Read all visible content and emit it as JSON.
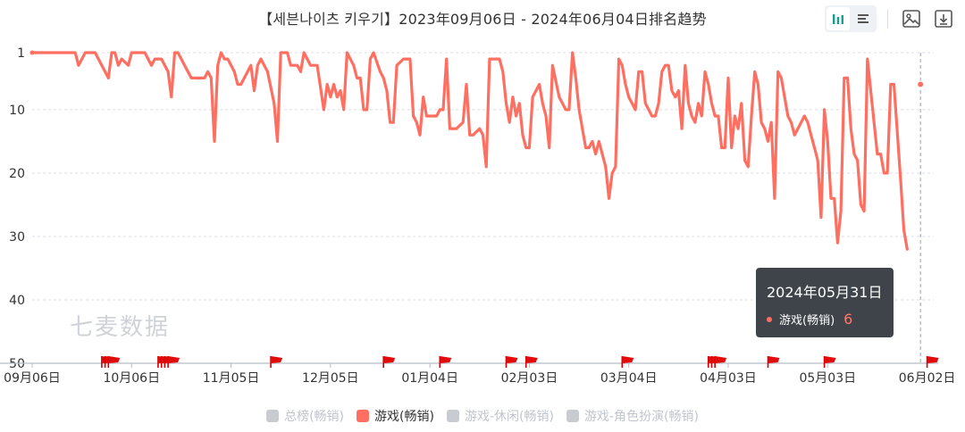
{
  "title": "【세븐나이츠 키우기】2023年09月06日 - 2024年06月04日排名趋势",
  "watermark": "七麦数据",
  "toolbar": {
    "icons": [
      "bar-chart-icon",
      "list-icon",
      "image-icon",
      "download-icon"
    ]
  },
  "tooltip": {
    "date": "2024年05月31日",
    "series": "游戏(畅销)",
    "value": "6"
  },
  "legend": [
    {
      "label": "总榜(畅销)",
      "active": false
    },
    {
      "label": "游戏(畅销)",
      "active": true
    },
    {
      "label": "游戏-休闲(畅销)",
      "active": false
    },
    {
      "label": "游戏-角色扮演(畅销)",
      "active": false
    }
  ],
  "chart_data": {
    "type": "line",
    "title": "【세븐나이츠 키우기】2023年09月06日 - 2024年06月04日排名趋势",
    "y_inverted": true,
    "ylim": [
      1,
      50
    ],
    "y_ticks": [
      1,
      10,
      20,
      30,
      40,
      50
    ],
    "x_start": "2023-09-06",
    "x_end": "2024-06-04",
    "x_ticks": [
      {
        "date": "2023-09-06",
        "label": "09月06日"
      },
      {
        "date": "2023-10-06",
        "label": "10月06日"
      },
      {
        "date": "2023-11-05",
        "label": "11月05日"
      },
      {
        "date": "2023-12-05",
        "label": "12月05日"
      },
      {
        "date": "2024-01-04",
        "label": "01月04日"
      },
      {
        "date": "2024-02-03",
        "label": "02月03日"
      },
      {
        "date": "2024-03-04",
        "label": "03月04日"
      },
      {
        "date": "2024-04-03",
        "label": "04月03日"
      },
      {
        "date": "2024-05-03",
        "label": "05月03日"
      },
      {
        "date": "2024-06-02",
        "label": "06月02日"
      }
    ],
    "grid": true,
    "legend_position": "bottom",
    "series": [
      {
        "name": "游戏(畅销)",
        "color": "#ff6f61",
        "points": [
          [
            "2023-09-06",
            1
          ],
          [
            "2023-09-19",
            1
          ],
          [
            "2023-09-20",
            3
          ],
          [
            "2023-09-22",
            1
          ],
          [
            "2023-09-25",
            1
          ],
          [
            "2023-09-27",
            3
          ],
          [
            "2023-09-29",
            5
          ],
          [
            "2023-09-30",
            1
          ],
          [
            "2023-10-01",
            1
          ],
          [
            "2023-10-02",
            3
          ],
          [
            "2023-10-03",
            2
          ],
          [
            "2023-10-05",
            3
          ],
          [
            "2023-10-06",
            1
          ],
          [
            "2023-10-10",
            1
          ],
          [
            "2023-10-12",
            3
          ],
          [
            "2023-10-13",
            2
          ],
          [
            "2023-10-15",
            2
          ],
          [
            "2023-10-17",
            4
          ],
          [
            "2023-10-18",
            8
          ],
          [
            "2023-10-19",
            1
          ],
          [
            "2023-10-20",
            1
          ],
          [
            "2023-10-22",
            3
          ],
          [
            "2023-10-23",
            4
          ],
          [
            "2023-10-24",
            5
          ],
          [
            "2023-10-28",
            5
          ],
          [
            "2023-10-29",
            4
          ],
          [
            "2023-10-30",
            5
          ],
          [
            "2023-10-31",
            15
          ],
          [
            "2023-11-01",
            3
          ],
          [
            "2023-11-02",
            1
          ],
          [
            "2023-11-03",
            2
          ],
          [
            "2023-11-04",
            2
          ],
          [
            "2023-11-06",
            4
          ],
          [
            "2023-11-07",
            6
          ],
          [
            "2023-11-08",
            6
          ],
          [
            "2023-11-09",
            5
          ],
          [
            "2023-11-11",
            3
          ],
          [
            "2023-11-12",
            7
          ],
          [
            "2023-11-13",
            3
          ],
          [
            "2023-11-14",
            2
          ],
          [
            "2023-11-16",
            4
          ],
          [
            "2023-11-18",
            9
          ],
          [
            "2023-11-19",
            15
          ],
          [
            "2023-11-20",
            1
          ],
          [
            "2023-11-22",
            1
          ],
          [
            "2023-11-23",
            3
          ],
          [
            "2023-11-25",
            3
          ],
          [
            "2023-11-26",
            4
          ],
          [
            "2023-11-27",
            1
          ],
          [
            "2023-11-28",
            2
          ],
          [
            "2023-11-29",
            3
          ],
          [
            "2023-12-01",
            3
          ],
          [
            "2023-12-03",
            10
          ],
          [
            "2023-12-04",
            6
          ],
          [
            "2023-12-05",
            8
          ],
          [
            "2023-12-06",
            6
          ],
          [
            "2023-12-07",
            8
          ],
          [
            "2023-12-08",
            7
          ],
          [
            "2023-12-09",
            10
          ],
          [
            "2023-12-10",
            1
          ],
          [
            "2023-12-12",
            3
          ],
          [
            "2023-12-13",
            5
          ],
          [
            "2023-12-14",
            5
          ],
          [
            "2023-12-15",
            10
          ],
          [
            "2023-12-16",
            10
          ],
          [
            "2023-12-17",
            2
          ],
          [
            "2023-12-18",
            1
          ],
          [
            "2023-12-20",
            4
          ],
          [
            "2023-12-21",
            5
          ],
          [
            "2023-12-22",
            7
          ],
          [
            "2023-12-23",
            12
          ],
          [
            "2023-12-24",
            12
          ],
          [
            "2023-12-25",
            3
          ],
          [
            "2023-12-27",
            2
          ],
          [
            "2023-12-29",
            2
          ],
          [
            "2023-12-30",
            11
          ],
          [
            "2023-12-31",
            12
          ],
          [
            "2024-01-01",
            14
          ],
          [
            "2024-01-02",
            8
          ],
          [
            "2024-01-03",
            11
          ],
          [
            "2024-01-04",
            11
          ],
          [
            "2024-01-06",
            11
          ],
          [
            "2024-01-07",
            10
          ],
          [
            "2024-01-08",
            10
          ],
          [
            "2024-01-09",
            2
          ],
          [
            "2024-01-10",
            13
          ],
          [
            "2024-01-11",
            13
          ],
          [
            "2024-01-12",
            13
          ],
          [
            "2024-01-14",
            12
          ],
          [
            "2024-01-15",
            6
          ],
          [
            "2024-01-16",
            14
          ],
          [
            "2024-01-17",
            14
          ],
          [
            "2024-01-19",
            13
          ],
          [
            "2024-01-20",
            14
          ],
          [
            "2024-01-21",
            19
          ],
          [
            "2024-01-22",
            2
          ],
          [
            "2024-01-25",
            2
          ],
          [
            "2024-01-26",
            4
          ],
          [
            "2024-01-27",
            9
          ],
          [
            "2024-01-28",
            12
          ],
          [
            "2024-01-29",
            8
          ],
          [
            "2024-01-30",
            11
          ],
          [
            "2024-01-31",
            9
          ],
          [
            "2024-02-01",
            14
          ],
          [
            "2024-02-02",
            16
          ],
          [
            "2024-02-03",
            16
          ],
          [
            "2024-02-04",
            8
          ],
          [
            "2024-02-06",
            6
          ],
          [
            "2024-02-07",
            9
          ],
          [
            "2024-02-08",
            11
          ],
          [
            "2024-02-09",
            16
          ],
          [
            "2024-02-10",
            3
          ],
          [
            "2024-02-12",
            8
          ],
          [
            "2024-02-13",
            9
          ],
          [
            "2024-02-14",
            10
          ],
          [
            "2024-02-15",
            10
          ],
          [
            "2024-02-16",
            1
          ],
          [
            "2024-02-17",
            5
          ],
          [
            "2024-02-18",
            10
          ],
          [
            "2024-02-20",
            16
          ],
          [
            "2024-02-21",
            16
          ],
          [
            "2024-02-22",
            15
          ],
          [
            "2024-02-23",
            17
          ],
          [
            "2024-02-24",
            15
          ],
          [
            "2024-02-26",
            19
          ],
          [
            "2024-02-27",
            24
          ],
          [
            "2024-02-28",
            20
          ],
          [
            "2024-02-29",
            19
          ],
          [
            "2024-03-01",
            2
          ],
          [
            "2024-03-02",
            3
          ],
          [
            "2024-03-03",
            6
          ],
          [
            "2024-03-04",
            8
          ],
          [
            "2024-03-05",
            9
          ],
          [
            "2024-03-06",
            10
          ],
          [
            "2024-03-07",
            4
          ],
          [
            "2024-03-08",
            4
          ],
          [
            "2024-03-09",
            9
          ],
          [
            "2024-03-10",
            10
          ],
          [
            "2024-03-11",
            11
          ],
          [
            "2024-03-12",
            11
          ],
          [
            "2024-03-13",
            9
          ],
          [
            "2024-03-14",
            4
          ],
          [
            "2024-03-15",
            3
          ],
          [
            "2024-03-16",
            3
          ],
          [
            "2024-03-17",
            7
          ],
          [
            "2024-03-18",
            8
          ],
          [
            "2024-03-19",
            7
          ],
          [
            "2024-03-20",
            13
          ],
          [
            "2024-03-21",
            3
          ],
          [
            "2024-03-22",
            9
          ],
          [
            "2024-03-23",
            11
          ],
          [
            "2024-03-24",
            12
          ],
          [
            "2024-03-25",
            9
          ],
          [
            "2024-03-26",
            11
          ],
          [
            "2024-03-27",
            4
          ],
          [
            "2024-03-28",
            6
          ],
          [
            "2024-03-29",
            9
          ],
          [
            "2024-03-30",
            11
          ],
          [
            "2024-03-31",
            11
          ],
          [
            "2024-04-01",
            16
          ],
          [
            "2024-04-02",
            16
          ],
          [
            "2024-04-03",
            5
          ],
          [
            "2024-04-04",
            16
          ],
          [
            "2024-04-05",
            11
          ],
          [
            "2024-04-06",
            13
          ],
          [
            "2024-04-07",
            9
          ],
          [
            "2024-04-08",
            18
          ],
          [
            "2024-04-09",
            19
          ],
          [
            "2024-04-10",
            11
          ],
          [
            "2024-04-11",
            4
          ],
          [
            "2024-04-12",
            6
          ],
          [
            "2024-04-13",
            12
          ],
          [
            "2024-04-14",
            13
          ],
          [
            "2024-04-15",
            15
          ],
          [
            "2024-04-16",
            12
          ],
          [
            "2024-04-17",
            24
          ],
          [
            "2024-04-18",
            4
          ],
          [
            "2024-04-19",
            5
          ],
          [
            "2024-04-20",
            8
          ],
          [
            "2024-04-21",
            11
          ],
          [
            "2024-04-22",
            12
          ],
          [
            "2024-04-23",
            14
          ],
          [
            "2024-04-24",
            13
          ],
          [
            "2024-04-25",
            12
          ],
          [
            "2024-04-26",
            11
          ],
          [
            "2024-04-27",
            12
          ],
          [
            "2024-04-28",
            14
          ],
          [
            "2024-04-29",
            16
          ],
          [
            "2024-04-30",
            18
          ],
          [
            "2024-05-01",
            27
          ],
          [
            "2024-05-02",
            10
          ],
          [
            "2024-05-03",
            15
          ],
          [
            "2024-05-04",
            24
          ],
          [
            "2024-05-05",
            24
          ],
          [
            "2024-05-06",
            31
          ],
          [
            "2024-05-07",
            26
          ],
          [
            "2024-05-08",
            5
          ],
          [
            "2024-05-09",
            5
          ],
          [
            "2024-05-10",
            13
          ],
          [
            "2024-05-11",
            17
          ],
          [
            "2024-05-12",
            18
          ],
          [
            "2024-05-13",
            25
          ],
          [
            "2024-05-14",
            26
          ],
          [
            "2024-05-15",
            2
          ],
          [
            "2024-05-16",
            7
          ],
          [
            "2024-05-17",
            12
          ],
          [
            "2024-05-18",
            17
          ],
          [
            "2024-05-19",
            17
          ],
          [
            "2024-05-20",
            20
          ],
          [
            "2024-05-21",
            20
          ],
          [
            "2024-05-22",
            6
          ],
          [
            "2024-05-23",
            6
          ],
          [
            "2024-05-25",
            21
          ],
          [
            "2024-05-26",
            29
          ],
          [
            "2024-05-27",
            32
          ]
        ]
      }
    ],
    "event_flag_dates": [
      "2023-09-27",
      "2023-09-28",
      "2023-09-29",
      "2023-10-14",
      "2023-10-15",
      "2023-10-16",
      "2023-10-17",
      "2023-11-17",
      "2023-12-21",
      "2024-01-07",
      "2024-01-27",
      "2024-02-02",
      "2024-03-02",
      "2024-03-28",
      "2024-03-29",
      "2024-03-30",
      "2024-04-15",
      "2024-05-02",
      "2024-06-02"
    ],
    "crosshair_date": "2024-05-31"
  }
}
